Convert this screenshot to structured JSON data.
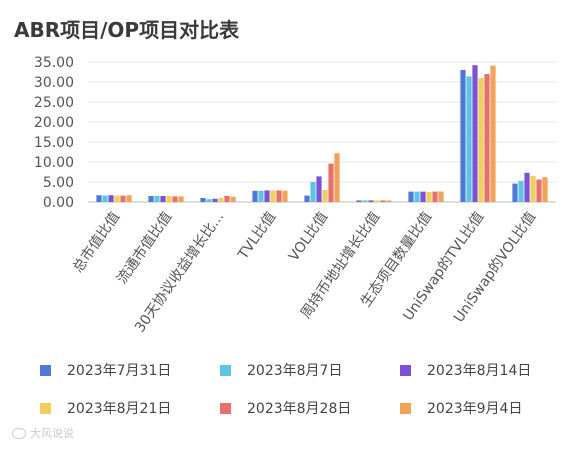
{
  "chart_data": {
    "type": "bar",
    "title": "ABR项目/OP项目对比表",
    "xlabel": "",
    "ylabel": "",
    "ylim": [
      0,
      35
    ],
    "yticks": [
      "0.00",
      "5.00",
      "10.00",
      "15.00",
      "20.00",
      "25.00",
      "30.00",
      "35.00"
    ],
    "grid": true,
    "legend_position": "bottom",
    "categories": [
      "总市值比值",
      "流通市值比值",
      "30天协议收益增长比...",
      "TVL比值",
      "VOL比值",
      "周持币地址增长比值",
      "生态项目数量比值",
      "UniSwap的TVL比值",
      "UniSwap的VOL比值"
    ],
    "series": [
      {
        "name": "2023年7月31日",
        "color": "#4e79d6",
        "values": [
          1.7,
          1.5,
          1.0,
          2.8,
          1.6,
          0.4,
          2.6,
          33.0,
          4.6
        ]
      },
      {
        "name": "2023年8月7日",
        "color": "#5ec4e6",
        "values": [
          1.6,
          1.5,
          0.7,
          2.8,
          5.0,
          0.4,
          2.6,
          31.4,
          5.3
        ]
      },
      {
        "name": "2023年8月14日",
        "color": "#7b52d6",
        "values": [
          1.7,
          1.5,
          0.8,
          2.9,
          6.4,
          0.4,
          2.6,
          34.2,
          7.3
        ]
      },
      {
        "name": "2023年8月21日",
        "color": "#f3cd5e",
        "values": [
          1.6,
          1.5,
          1.0,
          2.9,
          3.0,
          0.4,
          2.5,
          31.0,
          6.5
        ]
      },
      {
        "name": "2023年8月28日",
        "color": "#e8706a",
        "values": [
          1.6,
          1.4,
          1.5,
          2.9,
          9.6,
          0.4,
          2.6,
          32.0,
          5.6
        ]
      },
      {
        "name": "2023年9月4日",
        "color": "#f2a25a",
        "values": [
          1.7,
          1.4,
          1.3,
          2.8,
          12.2,
          0.4,
          2.6,
          34.1,
          6.2
        ]
      }
    ]
  },
  "watermark": "大风说说"
}
